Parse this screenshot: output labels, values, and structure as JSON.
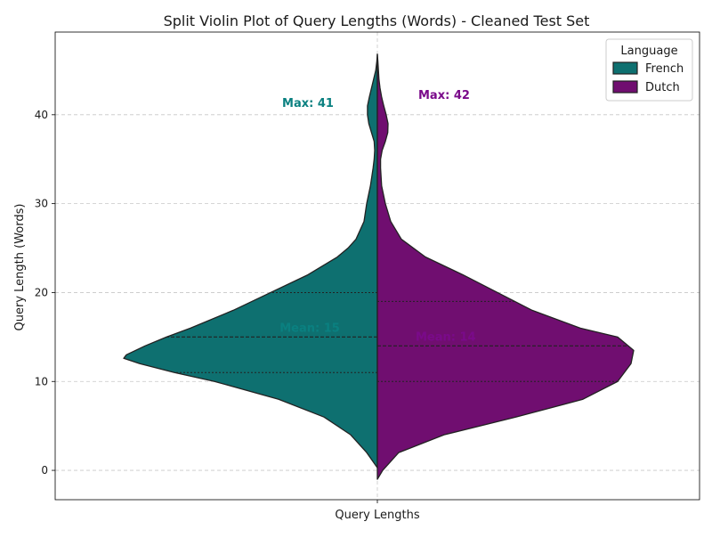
{
  "chart_data": {
    "type": "violin",
    "title": "Split Violin Plot of Query Lengths (Words) - Cleaned Test Set",
    "xlabel": "",
    "ylabel": "Query Length (Words)",
    "categories": [
      "Query Lengths"
    ],
    "ylim": [
      -3.3,
      49.3
    ],
    "yticks": [
      0,
      10,
      20,
      30,
      40
    ],
    "grid": true,
    "legend": {
      "title": "Language",
      "position": "top-right"
    },
    "series": [
      {
        "name": "French",
        "side": "left",
        "color": "#0e7070",
        "quartiles": [
          11,
          15,
          20
        ],
        "profile": [
          [
            0.3,
            0.0
          ],
          [
            2,
            0.04
          ],
          [
            4,
            0.1
          ],
          [
            6,
            0.2
          ],
          [
            8,
            0.37
          ],
          [
            10,
            0.61
          ],
          [
            11,
            0.76
          ],
          [
            12,
            0.89
          ],
          [
            12.6,
            0.95
          ],
          [
            13,
            0.94
          ],
          [
            14,
            0.87
          ],
          [
            15,
            0.79
          ],
          [
            16,
            0.7
          ],
          [
            18,
            0.54
          ],
          [
            20,
            0.4
          ],
          [
            22,
            0.26
          ],
          [
            24,
            0.15
          ],
          [
            25,
            0.11
          ],
          [
            26,
            0.08
          ],
          [
            28,
            0.05
          ],
          [
            30,
            0.04
          ],
          [
            32,
            0.026
          ],
          [
            34,
            0.016
          ],
          [
            35,
            0.012
          ],
          [
            36,
            0.01
          ],
          [
            37,
            0.012
          ],
          [
            38,
            0.022
          ],
          [
            39,
            0.032
          ],
          [
            40,
            0.037
          ],
          [
            41,
            0.037
          ],
          [
            42,
            0.03
          ],
          [
            43,
            0.022
          ],
          [
            44,
            0.014
          ],
          [
            45,
            0.006
          ],
          [
            46,
            0.002
          ],
          [
            46.8,
            0.0
          ]
        ],
        "max_label": "Max: 41",
        "mean_label": "Mean: 15"
      },
      {
        "name": "Dutch",
        "side": "right",
        "color": "#700e70",
        "quartiles": [
          10,
          14,
          19
        ],
        "profile": [
          [
            -1,
            0.0
          ],
          [
            0,
            0.02
          ],
          [
            2,
            0.08
          ],
          [
            4,
            0.25
          ],
          [
            6,
            0.52
          ],
          [
            8,
            0.77
          ],
          [
            10,
            0.9
          ],
          [
            12,
            0.95
          ],
          [
            13.5,
            0.96
          ],
          [
            15,
            0.9
          ],
          [
            16,
            0.76
          ],
          [
            18,
            0.58
          ],
          [
            20,
            0.45
          ],
          [
            22,
            0.32
          ],
          [
            24,
            0.18
          ],
          [
            26,
            0.09
          ],
          [
            28,
            0.05
          ],
          [
            30,
            0.03
          ],
          [
            32,
            0.016
          ],
          [
            34,
            0.012
          ],
          [
            35,
            0.012
          ],
          [
            36,
            0.018
          ],
          [
            37,
            0.03
          ],
          [
            38,
            0.039
          ],
          [
            39,
            0.04
          ],
          [
            40,
            0.033
          ],
          [
            41,
            0.024
          ],
          [
            42,
            0.016
          ],
          [
            43,
            0.01
          ],
          [
            44,
            0.006
          ],
          [
            45,
            0.004
          ],
          [
            46,
            0.002
          ],
          [
            46.8,
            0.0
          ]
        ],
        "max_label": "Max: 42",
        "mean_label": "Mean: 14"
      }
    ]
  }
}
